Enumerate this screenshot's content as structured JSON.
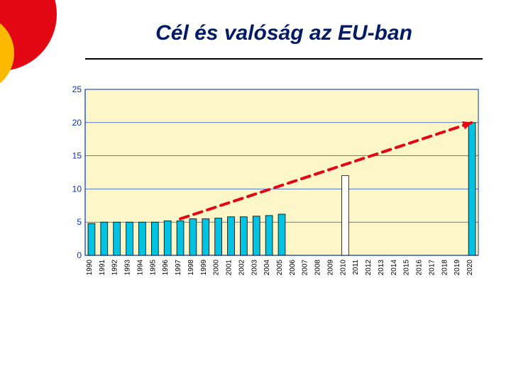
{
  "title": "Cél és valóság  az  EU-ban",
  "chart": {
    "type": "bar",
    "background_color": "#fdf6c9",
    "plot_border_color": "#0033cc",
    "grid_color": "#0033cc",
    "axis_color": "#0033cc",
    "bar_fill": "#00c3e3",
    "bar_stroke": "#000000",
    "target_bar_fill": "#ffffff",
    "arrow_color": "#e30613",
    "ylim": [
      0,
      25
    ],
    "ytick_step": 5,
    "yticks": [
      0,
      5,
      10,
      15,
      20,
      25
    ],
    "categories": [
      "1990",
      "1991",
      "1992",
      "1993",
      "1994",
      "1995",
      "1996",
      "1997",
      "1998",
      "1999",
      "2000",
      "2001",
      "2002",
      "2003",
      "2004",
      "2005",
      "2006",
      "2007",
      "2008",
      "2009",
      "2010",
      "2011",
      "2012",
      "2013",
      "2014",
      "2015",
      "2016",
      "2017",
      "2018",
      "2019",
      "2020"
    ],
    "values": [
      4.8,
      5.0,
      5.0,
      5.0,
      5.0,
      5.0,
      5.2,
      5.2,
      5.5,
      5.5,
      5.6,
      5.8,
      5.8,
      5.9,
      6.0,
      6.2,
      null,
      null,
      null,
      null,
      12.0,
      null,
      null,
      null,
      null,
      null,
      null,
      null,
      null,
      null,
      20.0
    ],
    "special_fill_index": 20,
    "arrow_start_index": 7,
    "arrow_start_value": 5.5,
    "arrow_end_index": 30,
    "arrow_end_value": 20,
    "bar_width": 0.55,
    "title_fontsize": 30,
    "ytick_fontsize": 12,
    "xtick_fontsize": 10
  }
}
